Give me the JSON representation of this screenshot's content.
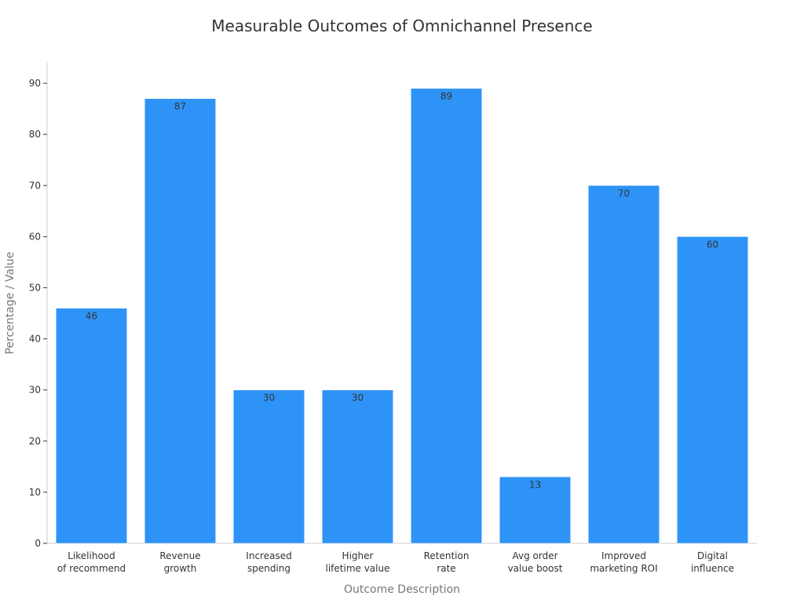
{
  "chart_data": {
    "type": "bar",
    "title": "Measurable Outcomes of Omnichannel Presence",
    "xlabel": "Outcome Description",
    "ylabel": "Percentage / Value",
    "ylim": [
      0,
      94
    ],
    "yticks": [
      "0",
      "10",
      "20",
      "30",
      "40",
      "50",
      "60",
      "70",
      "80",
      "90"
    ],
    "categories": [
      [
        "Likelihood",
        "of recommend"
      ],
      [
        "Revenue",
        "growth"
      ],
      [
        "Increased",
        "spending"
      ],
      [
        "Higher",
        "lifetime value"
      ],
      [
        "Retention",
        "rate"
      ],
      [
        "Avg order",
        "value boost"
      ],
      [
        "Improved",
        "marketing ROI"
      ],
      [
        "Digital",
        "influence"
      ]
    ],
    "values": [
      46,
      87,
      30,
      30,
      89,
      13,
      70,
      60
    ],
    "data_labels": [
      "46",
      "87",
      "30",
      "30",
      "89",
      "13",
      "70",
      "60"
    ],
    "grid": false,
    "bar_color": "#2e93f7",
    "axis_color": "#cccccc"
  }
}
